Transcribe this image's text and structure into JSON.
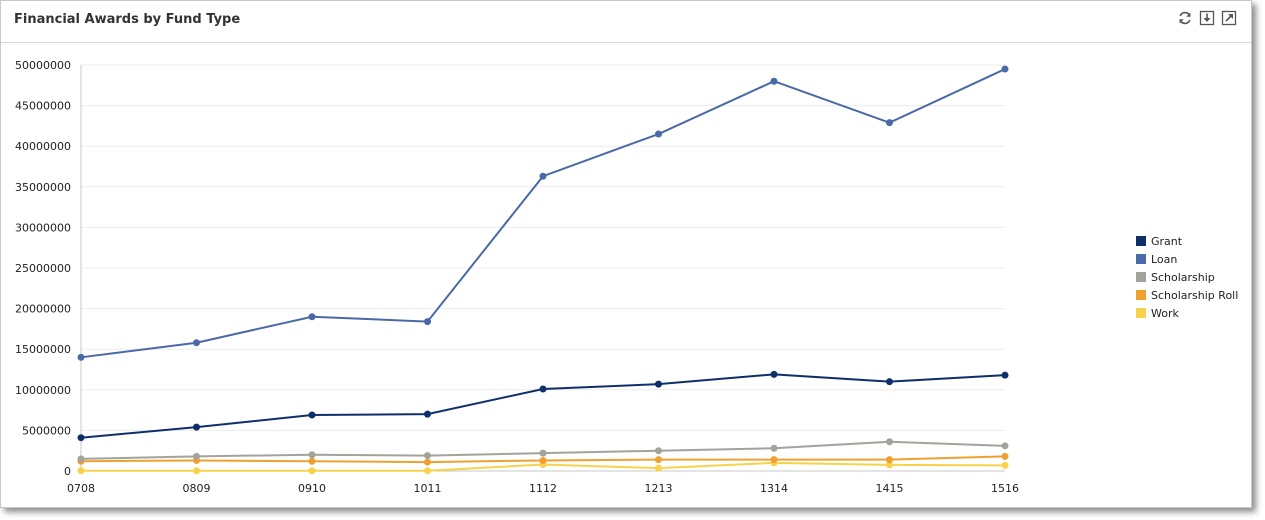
{
  "panel": {
    "title": "Financial Awards by Fund Type",
    "tools": [
      "refresh-icon",
      "download-icon",
      "popout-icon"
    ]
  },
  "chart_data": {
    "type": "line",
    "title": "Financial Awards by Fund Type",
    "xlabel": "",
    "ylabel": "",
    "categories": [
      "0708",
      "0809",
      "0910",
      "1011",
      "1112",
      "1213",
      "1314",
      "1415",
      "1516"
    ],
    "ylim": [
      0,
      50000000
    ],
    "yticks": [
      "0",
      "5000000",
      "10000000",
      "15000000",
      "20000000",
      "25000000",
      "30000000",
      "35000000",
      "40000000",
      "45000000",
      "50000000"
    ],
    "grid": true,
    "legend_position": "right",
    "series": [
      {
        "name": "Grant",
        "color": "#0f2f6b",
        "values": [
          4100000,
          5400000,
          6900000,
          7000000,
          10100000,
          10700000,
          11900000,
          11000000,
          11800000
        ]
      },
      {
        "name": "Loan",
        "color": "#4a69a8",
        "values": [
          14000000,
          15800000,
          19000000,
          18400000,
          36300000,
          41500000,
          48000000,
          42900000,
          49500000
        ]
      },
      {
        "name": "Scholarship",
        "color": "#a3a29b",
        "values": [
          1500000,
          1800000,
          2000000,
          1900000,
          2200000,
          2500000,
          2800000,
          3600000,
          3100000
        ]
      },
      {
        "name": "Scholarship Roll",
        "color": "#f0a030",
        "values": [
          1200000,
          1300000,
          1200000,
          1100000,
          1300000,
          1400000,
          1400000,
          1400000,
          1800000
        ]
      },
      {
        "name": "Work",
        "color": "#f9d24c",
        "values": [
          30000,
          30000,
          30000,
          30000,
          800000,
          350000,
          1000000,
          750000,
          700000
        ]
      }
    ]
  }
}
